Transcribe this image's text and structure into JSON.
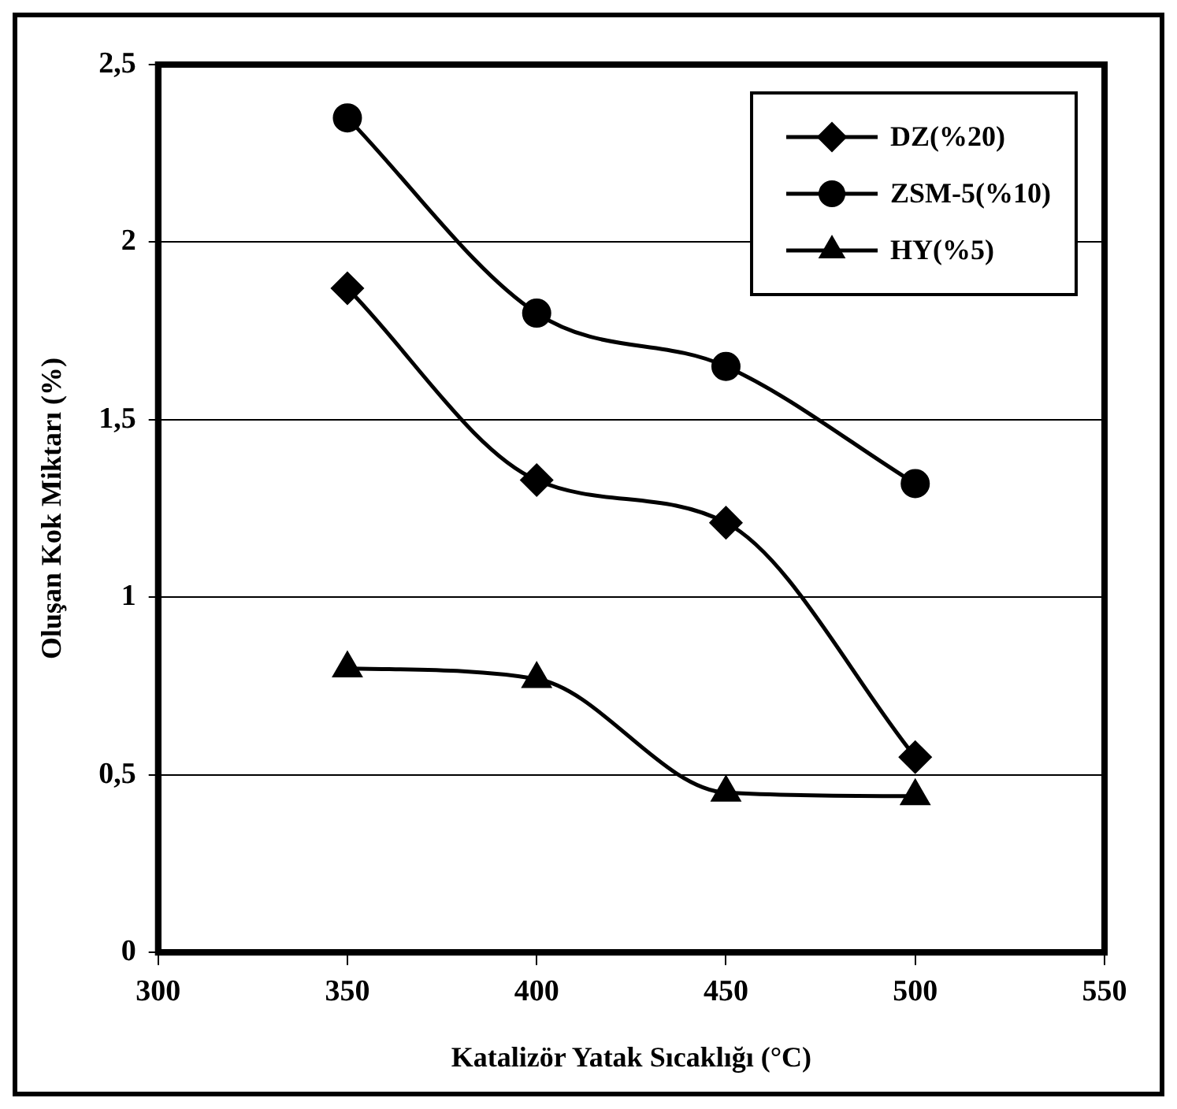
{
  "chart_data": {
    "type": "line",
    "xlabel": "Katalizör Yatak Sıcaklığı (°C)",
    "ylabel": "Oluşan Kok Miktarı (%)",
    "x": [
      350,
      400,
      450,
      500
    ],
    "series": [
      {
        "name": "DZ(%20)",
        "color": "#000000",
        "marker": "diamond",
        "values": [
          1.87,
          1.33,
          1.21,
          0.55
        ]
      },
      {
        "name": "ZSM-5(%10)",
        "color": "#000000",
        "marker": "circle",
        "values": [
          2.35,
          1.8,
          1.65,
          1.32
        ]
      },
      {
        "name": "HY(%5)",
        "color": "#000000",
        "marker": "triangle",
        "values": [
          0.8,
          0.77,
          0.45,
          0.44
        ]
      }
    ],
    "xlim": [
      300,
      550
    ],
    "xticks": [
      300,
      350,
      400,
      450,
      500,
      550
    ],
    "ylim": [
      0,
      2.5
    ],
    "yticks": [
      {
        "value": 0,
        "label": "0"
      },
      {
        "value": 0.5,
        "label": "0,5"
      },
      {
        "value": 1,
        "label": "1"
      },
      {
        "value": 1.5,
        "label": "1,5"
      },
      {
        "value": 2,
        "label": "2"
      },
      {
        "value": 2.5,
        "label": "2,5"
      }
    ],
    "grid": "y",
    "legend": "top right",
    "line_style": "solid"
  }
}
